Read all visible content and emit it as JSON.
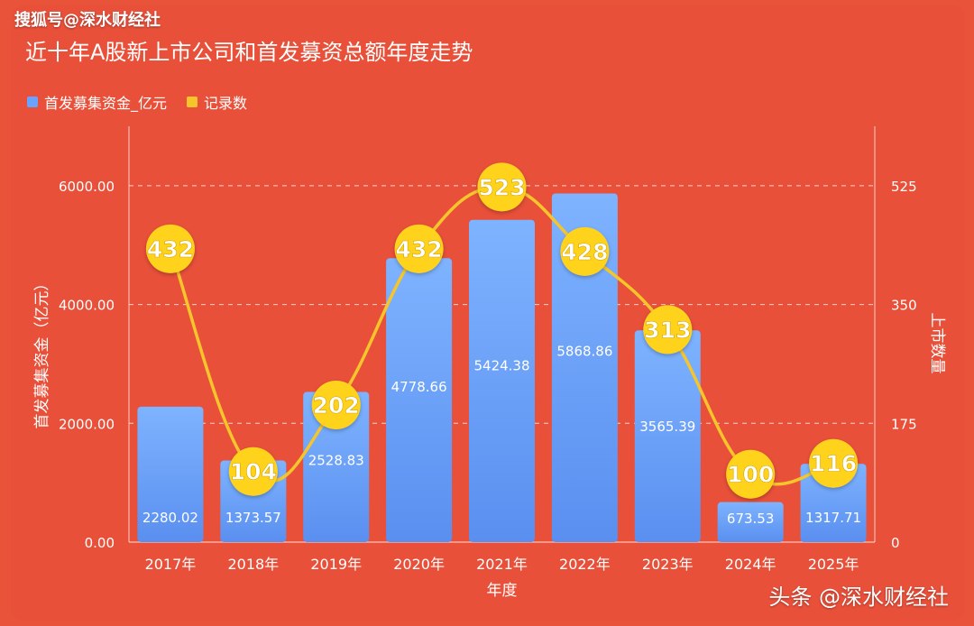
{
  "source_label": "搜狐号@深水财经社",
  "footer_label": "头条 @深水财经社",
  "colors": {
    "background": "#e8503a",
    "bar_top": "#7eb3ff",
    "bar_bottom": "#5a8ff0",
    "line": "#f6c52b",
    "marker": "#ffd21f",
    "text": "#ffffff"
  },
  "chart_data": {
    "type": "bar",
    "title": "近十年A股新上市公司和首发募资总额年度走势",
    "xlabel": "年度",
    "ylabel": "首发募集资金（亿元）",
    "y2label": "上市数量",
    "categories": [
      "2017年",
      "2018年",
      "2019年",
      "2020年",
      "2021年",
      "2022年",
      "2023年",
      "2024年",
      "2025年"
    ],
    "ylim": [
      0,
      7000
    ],
    "y_ticks": [
      "0.00",
      "2000.00",
      "4000.00",
      "6000.00"
    ],
    "y2lim": [
      0,
      612.5
    ],
    "y2_ticks": [
      "0",
      "175",
      "350",
      "525"
    ],
    "grid": true,
    "legend_position": "top-left",
    "series": [
      {
        "name": "首发募集资金_亿元",
        "type": "bar",
        "axis": "left",
        "values": [
          2280.02,
          1373.57,
          2528.83,
          4778.66,
          5424.38,
          5868.86,
          3565.39,
          673.53,
          1317.71
        ],
        "labels": [
          "2280.02",
          "1373.57",
          "2528.83",
          "4778.66",
          "5424.38",
          "5868.86",
          "3565.39",
          "673.53",
          "1317.71"
        ]
      },
      {
        "name": "记录数",
        "type": "line",
        "axis": "right",
        "values": [
          432,
          104,
          202,
          432,
          523,
          428,
          313,
          100,
          116
        ],
        "labels": [
          "432",
          "104",
          "202",
          "432",
          "523",
          "428",
          "313",
          "100",
          "116"
        ]
      }
    ]
  }
}
